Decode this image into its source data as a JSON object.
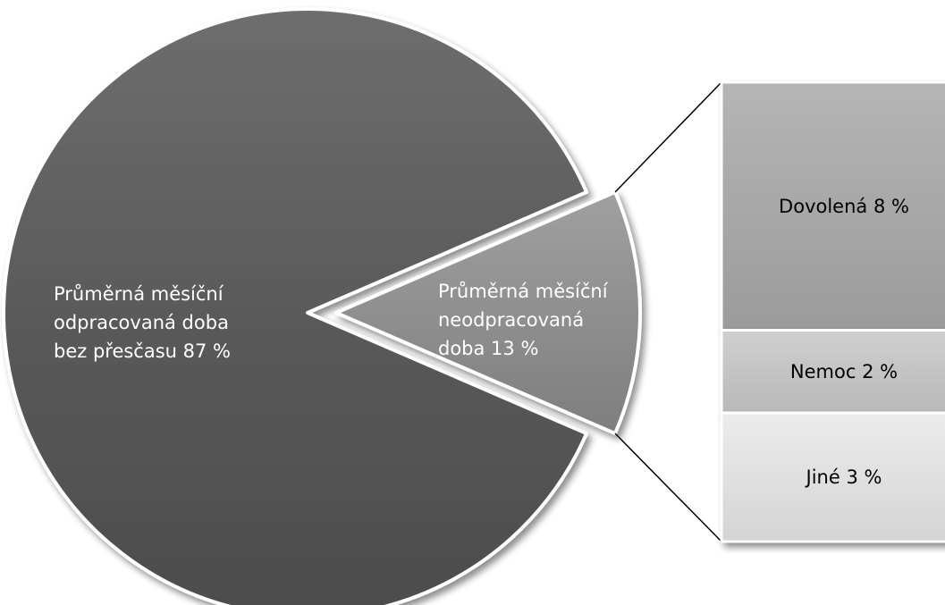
{
  "chart_data": {
    "type": "bar-of-pie",
    "title": "",
    "pie": {
      "slices": [
        {
          "name": "Průměrná měsíční odpracovaná doba bez přesčasu",
          "value": 87,
          "label_lines": [
            "Průměrná měsíční",
            "odpracovaná doba",
            "bez přesčasu 87 %"
          ],
          "color": "#595959"
        },
        {
          "name": "Průměrná měsíční neodpracovaná doba",
          "value": 13,
          "label_lines": [
            "Průměrná měsíční",
            "neodpracovaná",
            "doba 13 %"
          ],
          "color": "#8c8c8c"
        }
      ]
    },
    "breakdown": {
      "items": [
        {
          "name": "Dovolená",
          "value": 8,
          "label": "Dovolená 8 %",
          "color": "#a6a6a6"
        },
        {
          "name": "Nemoc",
          "value": 2,
          "label": "Nemoc 2 %",
          "color": "#bfbfbf"
        },
        {
          "name": "Jiné",
          "value": 3,
          "label": "Jiné 3 %",
          "color": "#d9d9d9"
        }
      ]
    }
  }
}
